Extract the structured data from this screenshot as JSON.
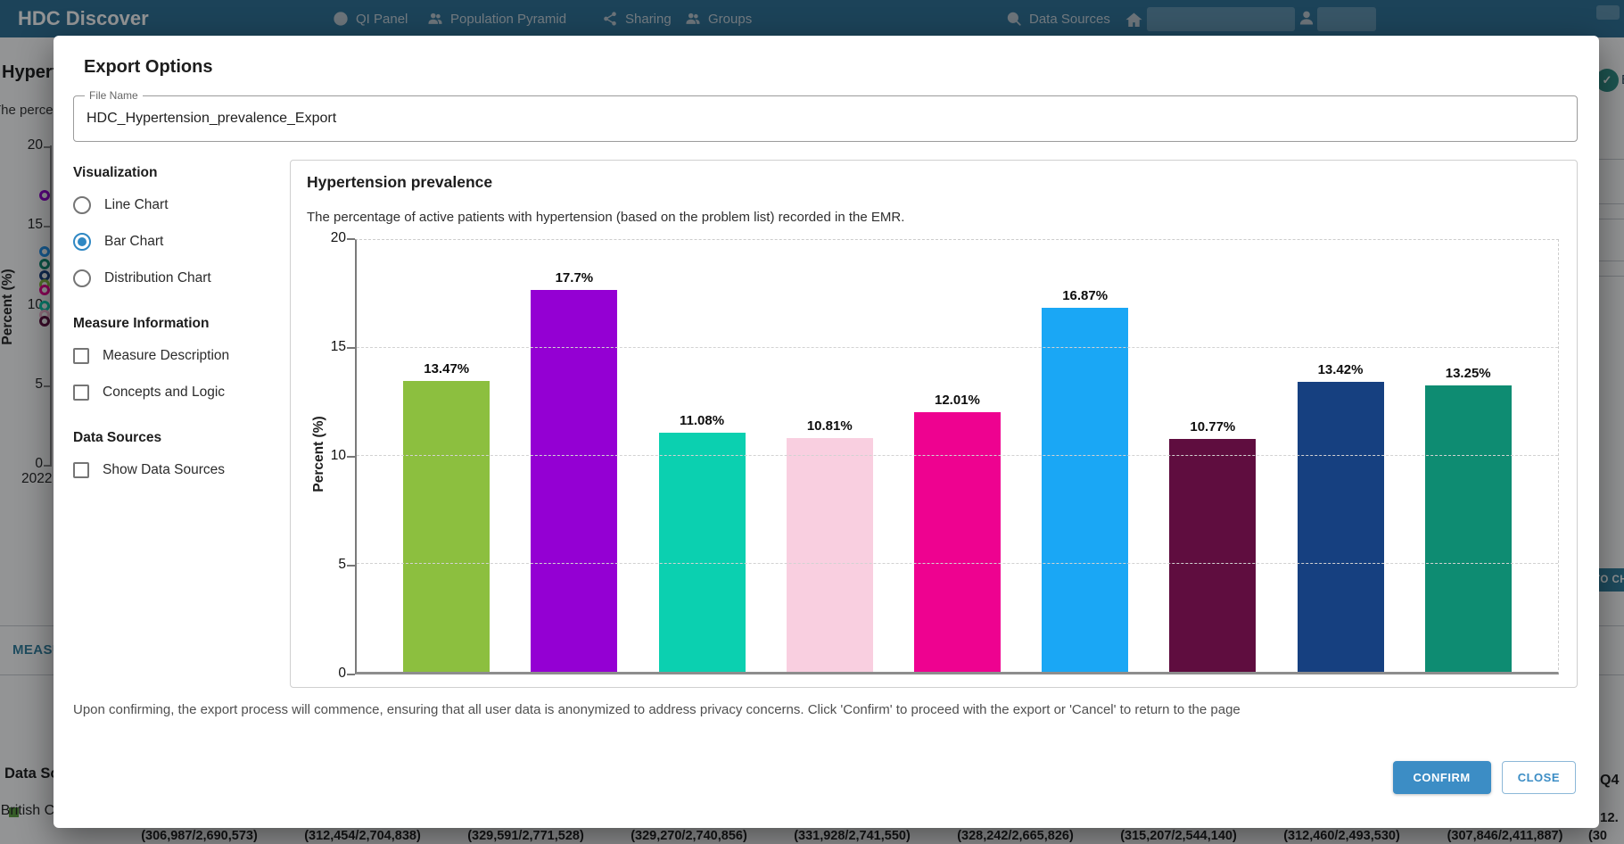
{
  "nav": {
    "brand": "HDC Discover",
    "items": [
      {
        "label": "QI Panel",
        "icon": "gauge-icon"
      },
      {
        "label": "Population Pyramid",
        "icon": "people-icon"
      },
      {
        "label": "Sharing",
        "icon": "share-icon"
      },
      {
        "label": "Groups",
        "icon": "people-icon"
      },
      {
        "label": "Data Sources",
        "icon": "chart-search-icon"
      }
    ]
  },
  "modal": {
    "title": "Export Options",
    "file_name": {
      "label": "File Name",
      "value": "HDC_Hypertension_prevalence_Export"
    },
    "visualization": {
      "heading": "Visualization",
      "options": [
        {
          "label": "Line Chart",
          "selected": false
        },
        {
          "label": "Bar Chart",
          "selected": true
        },
        {
          "label": "Distribution Chart",
          "selected": false
        }
      ]
    },
    "measure_information": {
      "heading": "Measure Information",
      "options": [
        {
          "label": "Measure Description",
          "checked": false
        },
        {
          "label": "Concepts and Logic",
          "checked": false
        }
      ]
    },
    "data_sources": {
      "heading": "Data Sources",
      "options": [
        {
          "label": "Show Data Sources",
          "checked": false
        }
      ]
    },
    "footer_note": "Upon confirming, the export process will commence, ensuring that all user data is anonymized to address privacy concerns. Click 'Confirm' to proceed with the export or 'Cancel' to return to the page",
    "confirm_label": "CONFIRM",
    "close_label": "CLOSE"
  },
  "chart_data": {
    "type": "bar",
    "title": "Hypertension prevalence",
    "subtitle": "The percentage of active patients with hypertension (based on the problem list) recorded in the EMR.",
    "ylabel": "Percent (%)",
    "ylim": [
      0,
      20
    ],
    "yticks": [
      0,
      5,
      10,
      15,
      20
    ],
    "grid": "dashed-horizontal",
    "legend": "none",
    "categories": [
      "",
      "",
      "",
      "",
      "",
      "",
      "",
      "",
      ""
    ],
    "values": [
      13.47,
      17.7,
      11.08,
      10.81,
      12.01,
      16.87,
      10.77,
      13.42,
      13.25
    ],
    "labels": [
      "13.47%",
      "17.7%",
      "11.08%",
      "10.81%",
      "12.01%",
      "16.87%",
      "10.77%",
      "13.42%",
      "13.25%"
    ],
    "colors": [
      "#8cbf3f",
      "#9400d3",
      "#0bd0b0",
      "#f9cfe0",
      "#ee0290",
      "#1aa7f5",
      "#5f0d3f",
      "#164080",
      "#0e8c72"
    ]
  },
  "background": {
    "page_title": "Hypertension prevalence",
    "page_subtitle": "The percentage of active patients with hypertension (based on the problem list) recorded in the EMR.",
    "chart": {
      "ylabel": "Percent (%)",
      "yticks": [
        20,
        15,
        10,
        5,
        0
      ],
      "x_tick": "2022",
      "markers": [
        {
          "color": "#9400d3",
          "value": 16.9
        },
        {
          "color": "#2196f3",
          "value": 13.4
        },
        {
          "color": "#0e8c72",
          "value": 12.6
        },
        {
          "color": "#164080",
          "value": 11.9
        },
        {
          "color": "#8cbf3f",
          "value": 11.3
        },
        {
          "color": "#ee0290",
          "value": 11.0
        },
        {
          "color": "#0bd0b0",
          "value": 10.0
        },
        {
          "color": "#f4b8d0",
          "value": 9.4
        },
        {
          "color": "#5f0d3f",
          "value": 9.0
        }
      ]
    },
    "measures_header_fragment": "MEASURES",
    "data_sources_heading": "Data Sources",
    "region_label": "British Columbia",
    "to_chart_fragment": "TO CHART",
    "avatar_fragment": "B",
    "bottom_row": {
      "q4_header": "Q4",
      "q4_value_fragment": "12.",
      "fractions": [
        "(306,987/2,690,573)",
        "(312,454/2,704,838)",
        "(329,591/2,771,528)",
        "(329,270/2,740,856)",
        "(331,928/2,741,550)",
        "(328,242/2,665,826)",
        "(315,207/2,544,140)",
        "(312,460/2,493,530)",
        "(307,846/2,411,887)",
        "(30"
      ]
    }
  }
}
